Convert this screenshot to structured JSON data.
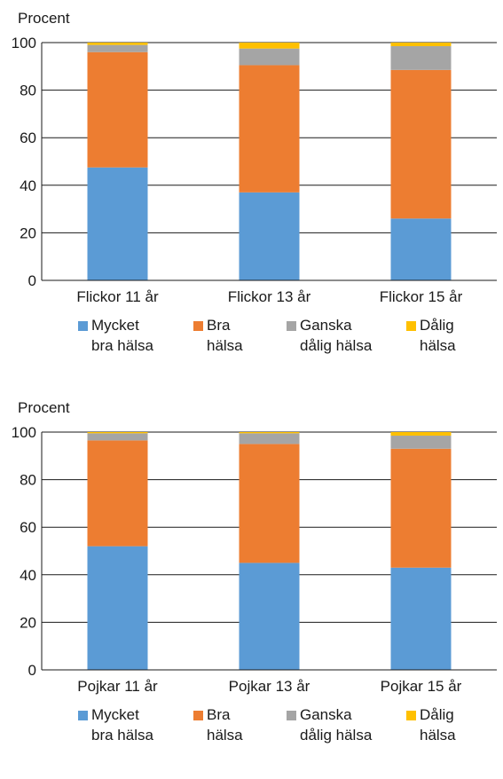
{
  "chart_data": [
    {
      "type": "bar",
      "stacked": true,
      "ylabel": "Procent",
      "ylim": [
        0,
        100
      ],
      "yticks": [
        "0",
        "20",
        "40",
        "60",
        "80",
        "100"
      ],
      "grid": true,
      "legend_position": "bottom",
      "categories": [
        "Flickor 11 år",
        "Flickor 13 år",
        "Flickor 15 år"
      ],
      "series": [
        {
          "name": "Mycket bra hälsa",
          "legend_lines": [
            "Mycket",
            "bra hälsa"
          ],
          "color": "#5b9bd5",
          "values": [
            47.5,
            37,
            26
          ]
        },
        {
          "name": "Bra hälsa",
          "legend_lines": [
            "Bra",
            "hälsa"
          ],
          "color": "#ed7d31",
          "values": [
            48.5,
            53.5,
            62.5
          ]
        },
        {
          "name": "Ganska dålig hälsa",
          "legend_lines": [
            "Ganska",
            "dålig hälsa"
          ],
          "color": "#a5a5a5",
          "values": [
            3,
            7,
            10
          ]
        },
        {
          "name": "Dålig hälsa",
          "legend_lines": [
            "Dålig",
            "hälsa"
          ],
          "color": "#ffc000",
          "values": [
            1,
            2.5,
            1.5
          ]
        }
      ]
    },
    {
      "type": "bar",
      "stacked": true,
      "ylabel": "Procent",
      "ylim": [
        0,
        100
      ],
      "yticks": [
        "0",
        "20",
        "40",
        "60",
        "80",
        "100"
      ],
      "grid": true,
      "legend_position": "bottom",
      "categories": [
        "Pojkar 11 år",
        "Pojkar 13 år",
        "Pojkar 15 år"
      ],
      "series": [
        {
          "name": "Mycket bra hälsa",
          "legend_lines": [
            "Mycket",
            "bra hälsa"
          ],
          "color": "#5b9bd5",
          "values": [
            52,
            45,
            43
          ]
        },
        {
          "name": "Bra hälsa",
          "legend_lines": [
            "Bra",
            "hälsa"
          ],
          "color": "#ed7d31",
          "values": [
            44.5,
            50,
            50
          ]
        },
        {
          "name": "Ganska dålig hälsa",
          "legend_lines": [
            "Ganska",
            "dålig hälsa"
          ],
          "color": "#a5a5a5",
          "values": [
            3,
            4.5,
            5.5
          ]
        },
        {
          "name": "Dålig hälsa",
          "legend_lines": [
            "Dålig",
            "hälsa"
          ],
          "color": "#ffc000",
          "values": [
            0.5,
            0.5,
            1.5
          ]
        }
      ]
    }
  ]
}
